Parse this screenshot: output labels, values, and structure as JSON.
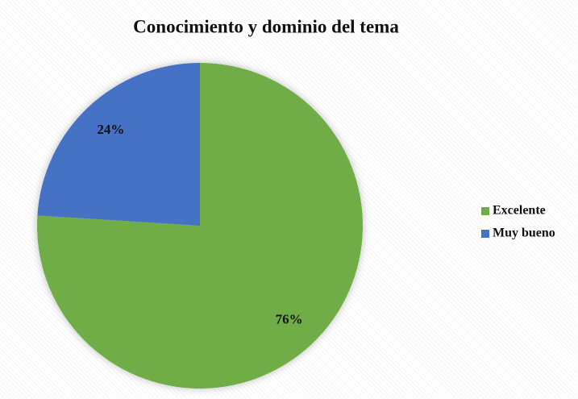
{
  "chart_data": {
    "type": "pie",
    "title": "Conocimiento y dominio del tema",
    "categories": [
      "Excelente",
      "Muy bueno"
    ],
    "values": [
      76,
      24
    ],
    "value_labels": [
      "76%",
      "24%"
    ],
    "colors": [
      "#70ad47",
      "#4472c4"
    ],
    "legend": "right"
  }
}
